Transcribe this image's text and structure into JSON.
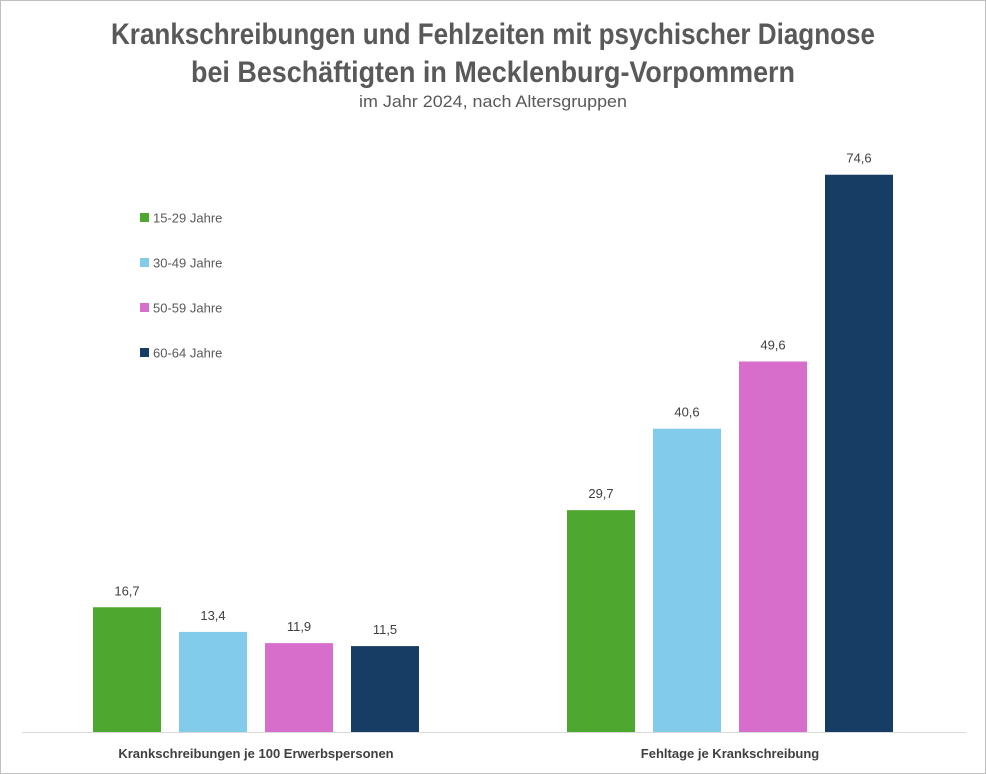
{
  "chart_data": {
    "type": "bar",
    "title": "Krankschreibungen und Fehlzeiten mit psychischer Diagnose",
    "title_line2": "bei Beschäftigten in Mecklenburg-Vorpommern",
    "subtitle": "im Jahr 2024, nach Altersgruppen",
    "categories": [
      "Krankschreibungen je 100 Erwerbspersonen",
      "Fehltage je Krankschreibung"
    ],
    "series": [
      {
        "name": "15-29 Jahre",
        "color": "#4EA72E",
        "values": [
          16.7,
          29.7
        ],
        "labels": [
          "16,7",
          "29,7"
        ]
      },
      {
        "name": "30-49 Jahre",
        "color": "#83CBEB",
        "values": [
          13.4,
          40.6
        ],
        "labels": [
          "13,4",
          "40,6"
        ]
      },
      {
        "name": "50-59 Jahre",
        "color": "#D86ECC",
        "values": [
          11.9,
          49.6
        ],
        "labels": [
          "11,9",
          "49,6"
        ]
      },
      {
        "name": "60-64 Jahre",
        "color": "#163E64",
        "values": [
          11.5,
          74.6
        ],
        "labels": [
          "11,5",
          "74,6"
        ]
      }
    ],
    "ylim": [
      0,
      80
    ],
    "grid": false,
    "y_axis_visible": false,
    "legend_position": "top-left"
  }
}
